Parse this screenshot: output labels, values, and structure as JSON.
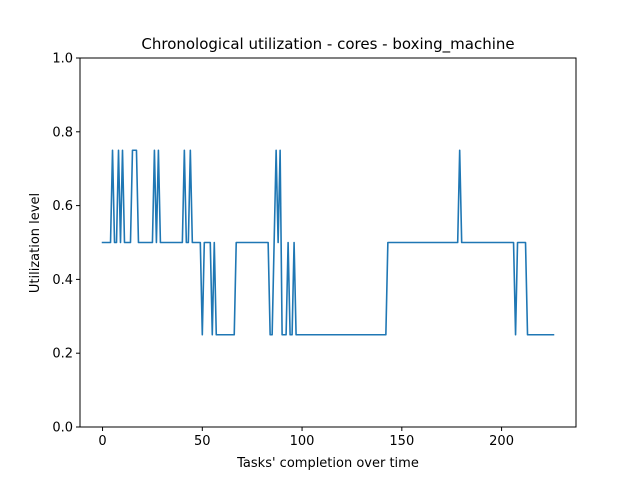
{
  "chart_data": {
    "type": "line",
    "title": "Chronological utilization - cores - boxing_machine",
    "xlabel": "Tasks' completion over time",
    "ylabel": "Utilization level",
    "xlim": [
      -11.3,
      237.3
    ],
    "ylim": [
      0,
      1.0
    ],
    "xticks": [
      0,
      50,
      100,
      150,
      200
    ],
    "yticks": [
      0.0,
      0.2,
      0.4,
      0.6,
      0.8,
      1.0
    ],
    "grid": false,
    "legend": "none",
    "line_color": "#1f77b4",
    "series": [
      {
        "x": [
          0,
          1,
          2,
          3,
          4,
          5,
          6,
          7,
          8,
          9,
          10,
          11,
          12,
          13,
          14,
          15,
          16,
          17,
          18,
          19,
          20,
          21,
          22,
          23,
          24,
          25,
          26,
          27,
          28,
          29,
          30,
          31,
          32,
          33,
          34,
          35,
          36,
          37,
          38,
          39,
          40,
          41,
          42,
          43,
          44,
          45,
          46,
          47,
          48,
          49,
          50,
          51,
          52,
          53,
          54,
          55,
          56,
          57,
          58,
          59,
          60,
          61,
          62,
          63,
          64,
          65,
          66,
          67,
          68,
          69,
          70,
          71,
          72,
          73,
          74,
          75,
          76,
          77,
          78,
          79,
          80,
          81,
          82,
          83,
          84,
          85,
          86,
          87,
          88,
          89,
          90,
          91,
          92,
          93,
          94,
          95,
          96,
          97,
          98,
          99,
          100,
          101,
          102,
          103,
          104,
          105,
          106,
          107,
          108,
          109,
          110,
          111,
          112,
          113,
          114,
          115,
          116,
          117,
          118,
          119,
          120,
          121,
          122,
          123,
          124,
          125,
          126,
          127,
          128,
          129,
          130,
          131,
          132,
          133,
          134,
          135,
          136,
          137,
          138,
          139,
          140,
          141,
          142,
          143,
          144,
          145,
          146,
          147,
          148,
          149,
          150,
          151,
          152,
          153,
          154,
          155,
          156,
          157,
          158,
          159,
          160,
          161,
          162,
          163,
          164,
          165,
          166,
          167,
          168,
          169,
          170,
          171,
          172,
          173,
          174,
          175,
          176,
          177,
          178,
          179,
          180,
          181,
          182,
          183,
          184,
          185,
          186,
          187,
          188,
          189,
          190,
          191,
          192,
          193,
          194,
          195,
          196,
          197,
          198,
          199,
          200,
          201,
          202,
          203,
          204,
          205,
          206,
          207,
          208,
          209,
          210,
          211,
          212,
          213,
          214,
          215,
          216,
          217,
          218,
          219,
          220,
          221,
          222,
          223,
          224,
          225,
          226
        ],
        "values": [
          0.5,
          0.5,
          0.5,
          0.5,
          0.5,
          0.75,
          0.5,
          0.5,
          0.75,
          0.5,
          0.75,
          0.5,
          0.5,
          0.5,
          0.5,
          0.75,
          0.75,
          0.75,
          0.5,
          0.5,
          0.5,
          0.5,
          0.5,
          0.5,
          0.5,
          0.5,
          0.75,
          0.5,
          0.75,
          0.5,
          0.5,
          0.5,
          0.5,
          0.5,
          0.5,
          0.5,
          0.5,
          0.5,
          0.5,
          0.5,
          0.5,
          0.75,
          0.5,
          0.5,
          0.75,
          0.5,
          0.5,
          0.5,
          0.5,
          0.5,
          0.25,
          0.5,
          0.5,
          0.5,
          0.5,
          0.25,
          0.5,
          0.25,
          0.25,
          0.25,
          0.25,
          0.25,
          0.25,
          0.25,
          0.25,
          0.25,
          0.25,
          0.5,
          0.5,
          0.5,
          0.5,
          0.5,
          0.5,
          0.5,
          0.5,
          0.5,
          0.5,
          0.5,
          0.5,
          0.5,
          0.5,
          0.5,
          0.5,
          0.5,
          0.25,
          0.25,
          0.5,
          0.75,
          0.5,
          0.75,
          0.25,
          0.25,
          0.25,
          0.5,
          0.25,
          0.25,
          0.5,
          0.25,
          0.25,
          0.25,
          0.25,
          0.25,
          0.25,
          0.25,
          0.25,
          0.25,
          0.25,
          0.25,
          0.25,
          0.25,
          0.25,
          0.25,
          0.25,
          0.25,
          0.25,
          0.25,
          0.25,
          0.25,
          0.25,
          0.25,
          0.25,
          0.25,
          0.25,
          0.25,
          0.25,
          0.25,
          0.25,
          0.25,
          0.25,
          0.25,
          0.25,
          0.25,
          0.25,
          0.25,
          0.25,
          0.25,
          0.25,
          0.25,
          0.25,
          0.25,
          0.25,
          0.25,
          0.25,
          0.5,
          0.5,
          0.5,
          0.5,
          0.5,
          0.5,
          0.5,
          0.5,
          0.5,
          0.5,
          0.5,
          0.5,
          0.5,
          0.5,
          0.5,
          0.5,
          0.5,
          0.5,
          0.5,
          0.5,
          0.5,
          0.5,
          0.5,
          0.5,
          0.5,
          0.5,
          0.5,
          0.5,
          0.5,
          0.5,
          0.5,
          0.5,
          0.5,
          0.5,
          0.5,
          0.5,
          0.75,
          0.5,
          0.5,
          0.5,
          0.5,
          0.5,
          0.5,
          0.5,
          0.5,
          0.5,
          0.5,
          0.5,
          0.5,
          0.5,
          0.5,
          0.5,
          0.5,
          0.5,
          0.5,
          0.5,
          0.5,
          0.5,
          0.5,
          0.5,
          0.5,
          0.5,
          0.5,
          0.5,
          0.25,
          0.5,
          0.5,
          0.5,
          0.5,
          0.5,
          0.25,
          0.25,
          0.25,
          0.25,
          0.25,
          0.25,
          0.25,
          0.25,
          0.25,
          0.25,
          0.25,
          0.25,
          0.25,
          0.25
        ]
      }
    ]
  }
}
